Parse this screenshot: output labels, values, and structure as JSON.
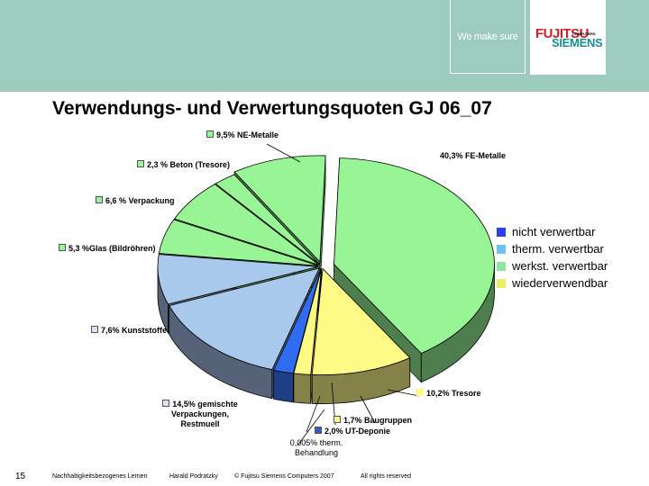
{
  "header": {
    "tagline": "We make sure",
    "logo": {
      "line1": "FUJITSU",
      "line1_small": "COMPUTERS",
      "line2": "SIEMENS"
    },
    "band_color": "#9dcbbd"
  },
  "slide": {
    "title": "Verwendungs- und Verwertungsquoten GJ 06_07"
  },
  "legend": {
    "items": [
      {
        "label": "nicht verwertbar",
        "color": "#2a3ff0"
      },
      {
        "label": "therm. verwertbar",
        "color": "#6cc2f5"
      },
      {
        "label": "werkst. verwertbar",
        "color": "#8fe79f"
      },
      {
        "label": "wiederverwendbar",
        "color": "#ecef62"
      }
    ]
  },
  "labels": {
    "ne_metalle": "9,5% NE-Metalle",
    "fe_metalle": "40,3% FE-Metalle",
    "beton": "2,3 % Beton (Tresore)",
    "verpackung": "6,6 % Verpackung",
    "glas": "5,3 %Glas (Bildröhren)",
    "kunststoffe": "7,6% Kunststoffe",
    "gemischte_1": "14,5% gemischte",
    "gemischte_2": "Verpackungen,",
    "gemischte_3": "Restmuell",
    "tresore": "10,2% Tresore",
    "baugruppen": "1,7% Baugruppen",
    "ut_deponie": "2,0% UT-Deponie",
    "therm_1": "0,005% therm.",
    "therm_2": "Behandlung"
  },
  "footer": {
    "page_number": "15",
    "course": "Nachhaltigkeitsbezogenes Lernen",
    "author": "Harald Podratzky",
    "copyright": "© Fujitsu Siemens Computers 2007",
    "rights": "All rights reserved"
  },
  "chart_data": {
    "type": "pie",
    "title": "Verwendungs- und Verwertungsquoten GJ 06_07",
    "style": "3d-exploded",
    "legend_position": "right",
    "categories": [
      "FE-Metalle",
      "Tresore",
      "Baugruppen",
      "therm. Behandlung",
      "UT-Deponie",
      "gemischte Verpackungen, Restmuell",
      "Kunststoffe",
      "Glas (Bildröhren)",
      "Verpackung",
      "Beton (Tresore)",
      "NE-Metalle"
    ],
    "values": [
      40.3,
      10.2,
      1.7,
      0.005,
      2.0,
      14.5,
      7.6,
      5.3,
      6.6,
      2.3,
      9.5
    ],
    "groups": [
      "werkst. verwertbar",
      "wiederverwendbar",
      "wiederverwendbar",
      "therm. verwertbar",
      "nicht verwertbar",
      "therm. verwertbar",
      "therm. verwertbar",
      "werkst. verwertbar",
      "werkst. verwertbar",
      "werkst. verwertbar",
      "werkst. verwertbar"
    ],
    "slice_colors": {
      "werkst. verwertbar": {
        "top": "#98f595",
        "side": "#4e7d4e"
      },
      "wiederverwendbar": {
        "top": "#fdfa86",
        "side": "#858249"
      },
      "therm. verwertbar": {
        "top": "#a9c9ec",
        "side": "#566277"
      },
      "nicht verwertbar": {
        "top": "#2f6cf0",
        "side": "#1e3f85"
      }
    },
    "explode": [
      14,
      4,
      4,
      4,
      4,
      4,
      4,
      4,
      4,
      4,
      8
    ]
  }
}
